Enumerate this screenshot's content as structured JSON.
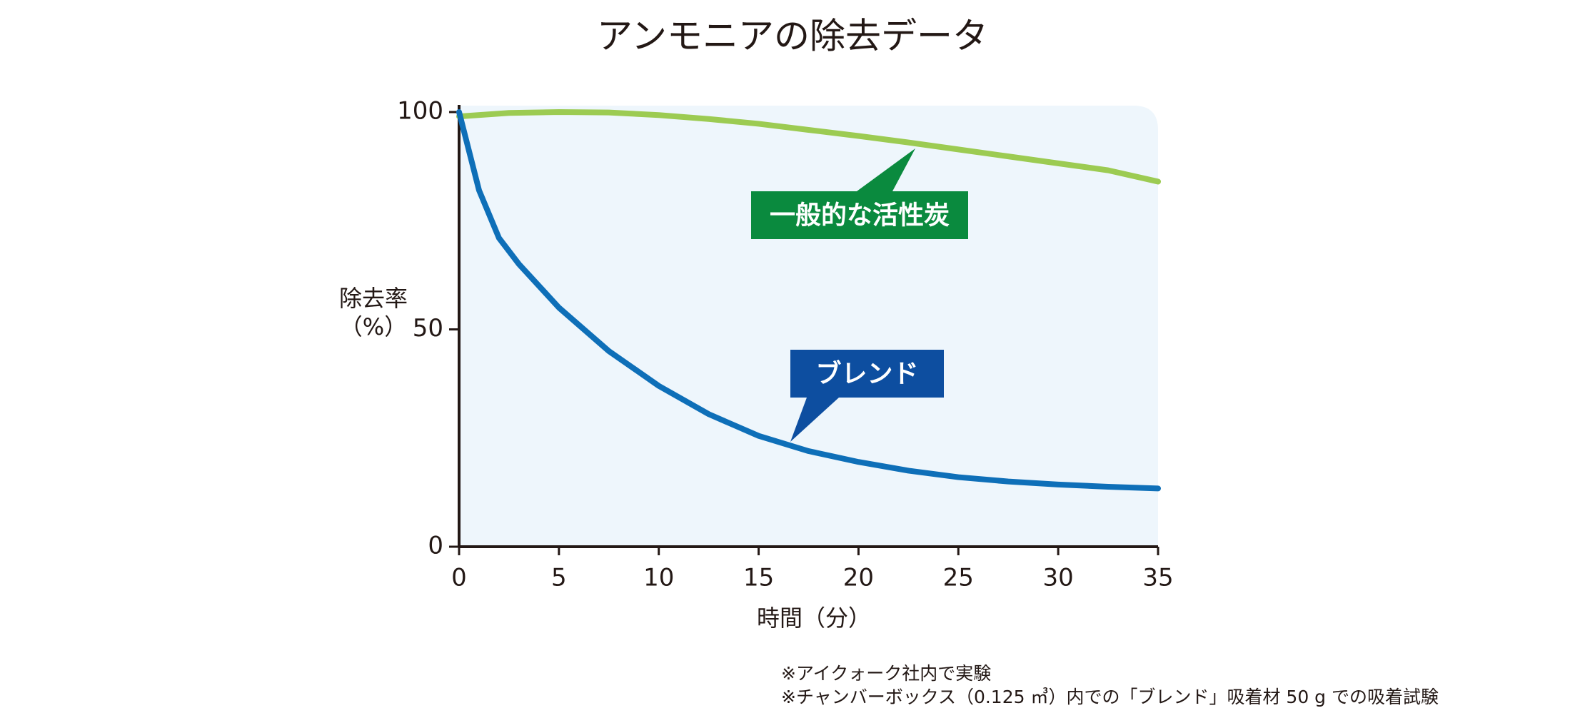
{
  "chart_data": {
    "type": "line",
    "title": "アンモニアの除去データ",
    "xlabel": "時間（分）",
    "ylabel": [
      "除去率",
      "（%）"
    ],
    "xlim": [
      0,
      35
    ],
    "xticks": [
      0,
      5,
      10,
      15,
      20,
      25,
      30,
      35
    ],
    "ylim": [
      0,
      100
    ],
    "yticks": [
      0,
      50,
      100
    ],
    "series": [
      {
        "name": "一般的な活性炭",
        "color": "#9ccb52",
        "x": [
          0,
          2.5,
          5,
          7.5,
          10,
          12.5,
          15,
          17.5,
          20,
          22.5,
          25,
          27.5,
          30,
          32.5,
          35
        ],
        "values": [
          99,
          99.8,
          100,
          99.9,
          99.3,
          98.4,
          97.3,
          95.9,
          94.5,
          93,
          91.4,
          89.8,
          88.2,
          86.6,
          84
        ]
      },
      {
        "name": "ブレンド",
        "color": "#0e6fb8",
        "x": [
          0,
          1,
          2,
          3,
          5,
          7.5,
          10,
          12.5,
          15,
          17.5,
          20,
          22.5,
          25,
          27.5,
          30,
          32.5,
          35
        ],
        "values": [
          100,
          82,
          71,
          65,
          55,
          45,
          37,
          30.5,
          25.5,
          22,
          19.5,
          17.5,
          16,
          15,
          14.3,
          13.8,
          13.4
        ]
      }
    ],
    "annotations": [
      {
        "text": "一般的な活性炭",
        "color": "#0a8a3e"
      },
      {
        "text": "ブレンド",
        "color": "#0d4ea0"
      }
    ],
    "notes": [
      "※アイクォーク社内で実験",
      "※チャンバーボックス（0.125 ㎥）内での「ブレンド」吸着材 50 g での吸着試験"
    ]
  }
}
